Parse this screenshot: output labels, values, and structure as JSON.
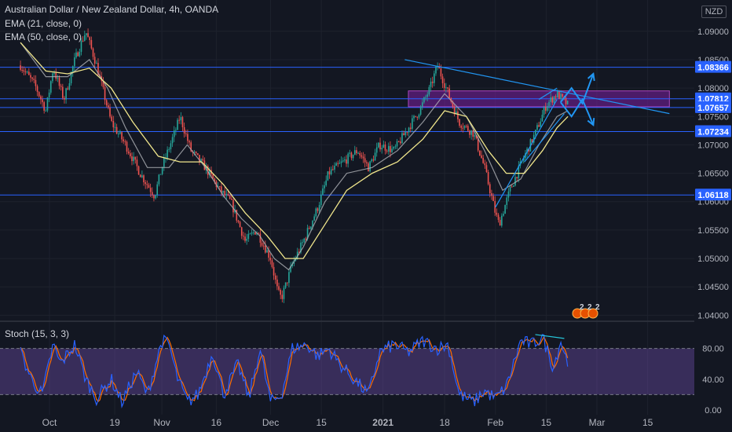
{
  "legend": {
    "title": "Australian Dollar / New Zealand Dollar, 4h, OANDA",
    "ema21": "EMA (21, close, 0)",
    "ema50": "EMA (50, close, 0)",
    "stoch": "Stoch (15, 3, 3)"
  },
  "currency": "NZD",
  "events": [
    "2",
    "2",
    "2"
  ],
  "colors": {
    "background": "#131722",
    "candle_up": "#26a69a",
    "candle_down": "#ef5350",
    "ema21": "#b0b3b8",
    "ema50": "#f0e68c",
    "hline": "#2962ff",
    "zone": "#7b1fa2",
    "trendline": "#2196f3",
    "stoch_k": "#2962ff",
    "stoch_d": "#ff6d00",
    "stoch_band": "#7e57c2",
    "price_label_bg": "#2962ff"
  },
  "chart_data": [
    {
      "type": "candlestick",
      "symbol": "AUDNZD",
      "interval": "4h",
      "x_ticks": [
        "Oct",
        "19",
        "Nov",
        "16",
        "Dec",
        "15",
        "2021",
        "18",
        "Feb",
        "15",
        "Mar",
        "15"
      ],
      "y_ticks": [
        "1.09000",
        "1.08500",
        "1.08000",
        "1.07500",
        "1.07000",
        "1.06500",
        "1.06000",
        "1.05500",
        "1.05000",
        "1.04500",
        "1.04000"
      ],
      "ylim": [
        1.0395,
        1.0955
      ],
      "close_path": [
        [
          "Sep 23",
          1.084
        ],
        [
          "Sep 27",
          1.0805
        ],
        [
          "Sep 30",
          1.076
        ],
        [
          "Oct 2",
          1.0835
        ],
        [
          "Oct 5",
          1.078
        ],
        [
          "Oct 8",
          1.085
        ],
        [
          "Oct 11",
          1.09
        ],
        [
          "Oct 14",
          1.084
        ],
        [
          "Oct 18",
          1.074
        ],
        [
          "Oct 22",
          1.07
        ],
        [
          "Oct 26",
          1.065
        ],
        [
          "Oct 30",
          1.061
        ],
        [
          "Nov 1",
          1.066
        ],
        [
          "Nov 5",
          1.073
        ],
        [
          "Nov 6",
          1.075
        ],
        [
          "Nov 9",
          1.069
        ],
        [
          "Nov 13",
          1.066
        ],
        [
          "Nov 17",
          1.062
        ],
        [
          "Nov 20",
          1.06
        ],
        [
          "Nov 24",
          1.053
        ],
        [
          "Nov 27",
          1.055
        ],
        [
          "Dec 1",
          1.05
        ],
        [
          "Dec 3",
          1.044
        ],
        [
          "Dec 4",
          1.043
        ],
        [
          "Dec 7",
          1.049
        ],
        [
          "Dec 10",
          1.053
        ],
        [
          "Dec 14",
          1.059
        ],
        [
          "Dec 17",
          1.065
        ],
        [
          "Dec 21",
          1.067
        ],
        [
          "Dec 25",
          1.069
        ],
        [
          "Dec 28",
          1.066
        ],
        [
          "Dec 31",
          1.07
        ],
        [
          "Jan 4",
          1.069
        ],
        [
          "Jan 7",
          1.072
        ],
        [
          "Jan 11",
          1.076
        ],
        [
          "Jan 14",
          1.08
        ],
        [
          "Jan 16",
          1.084
        ],
        [
          "Jan 19",
          1.079
        ],
        [
          "Jan 22",
          1.074
        ],
        [
          "Jan 26",
          1.072
        ],
        [
          "Jan 29",
          1.066
        ],
        [
          "Feb 1",
          1.058
        ],
        [
          "Feb 2",
          1.056
        ],
        [
          "Feb 5",
          1.062
        ],
        [
          "Feb 9",
          1.068
        ],
        [
          "Feb 12",
          1.072
        ],
        [
          "Feb 15",
          1.077
        ],
        [
          "Feb 18",
          1.079
        ],
        [
          "Feb 21",
          1.077
        ]
      ],
      "ema21_path": [
        [
          "Sep 23",
          1.088
        ],
        [
          "Sep 30",
          1.082
        ],
        [
          "Oct 6",
          1.082
        ],
        [
          "Oct 12",
          1.085
        ],
        [
          "Oct 17",
          1.08
        ],
        [
          "Oct 22",
          1.073
        ],
        [
          "Oct 28",
          1.066
        ],
        [
          "Nov 3",
          1.066
        ],
        [
          "Nov 8",
          1.07
        ],
        [
          "Nov 13",
          1.066
        ],
        [
          "Nov 18",
          1.061
        ],
        [
          "Nov 23",
          1.057
        ],
        [
          "Nov 28",
          1.054
        ],
        [
          "Dec 2",
          1.05
        ],
        [
          "Dec 6",
          1.048
        ],
        [
          "Dec 10",
          1.052
        ],
        [
          "Dec 16",
          1.06
        ],
        [
          "Dec 22",
          1.065
        ],
        [
          "Dec 29",
          1.066
        ],
        [
          "Jan 5",
          1.069
        ],
        [
          "Jan 12",
          1.074
        ],
        [
          "Jan 18",
          1.079
        ],
        [
          "Jan 24",
          1.075
        ],
        [
          "Jan 29",
          1.069
        ],
        [
          "Feb 3",
          1.062
        ],
        [
          "Feb 8",
          1.064
        ],
        [
          "Feb 13",
          1.07
        ],
        [
          "Feb 18",
          1.075
        ],
        [
          "Feb 21",
          1.076
        ]
      ],
      "ema50_path": [
        [
          "Sep 23",
          1.088
        ],
        [
          "Sep 30",
          1.083
        ],
        [
          "Oct 6",
          1.0825
        ],
        [
          "Oct 12",
          1.0835
        ],
        [
          "Oct 18",
          1.08
        ],
        [
          "Oct 24",
          1.074
        ],
        [
          "Oct 31",
          1.068
        ],
        [
          "Nov 6",
          1.067
        ],
        [
          "Nov 12",
          1.067
        ],
        [
          "Nov 18",
          1.063
        ],
        [
          "Nov 24",
          1.058
        ],
        [
          "Nov 30",
          1.054
        ],
        [
          "Dec 5",
          1.05
        ],
        [
          "Dec 10",
          1.05
        ],
        [
          "Dec 16",
          1.056
        ],
        [
          "Dec 22",
          1.062
        ],
        [
          "Dec 29",
          1.065
        ],
        [
          "Jan 5",
          1.067
        ],
        [
          "Jan 12",
          1.071
        ],
        [
          "Jan 18",
          1.076
        ],
        [
          "Jan 24",
          1.075
        ],
        [
          "Jan 30",
          1.069
        ],
        [
          "Feb 4",
          1.065
        ],
        [
          "Feb 9",
          1.065
        ],
        [
          "Feb 14",
          1.069
        ],
        [
          "Feb 18",
          1.073
        ],
        [
          "Feb 21",
          1.075
        ]
      ],
      "horizontal_levels": [
        1.08366,
        1.07812,
        1.07657,
        1.07234,
        1.06118
      ],
      "price_labels": [
        "1.08366",
        "1.07812",
        "1.07657",
        "1.07234",
        "1.06118"
      ],
      "current_price_label": "1.07812",
      "zone": {
        "x_start": "Jan 8",
        "x_end": "Mar 21",
        "y_low": 1.0767,
        "y_high": 1.0795
      },
      "trendlines": [
        {
          "start": [
            "Jan 7",
            1.085
          ],
          "end": [
            "Mar 21",
            1.0755
          ]
        },
        {
          "start": [
            "Feb 1",
            1.059
          ],
          "end": [
            "Feb 18",
            1.078
          ]
        },
        {
          "start": [
            "Feb 9",
            1.067
          ],
          "end": [
            "Feb 20",
            1.0755
          ]
        },
        {
          "start": [
            "Feb 13",
            1.078
          ],
          "end": [
            "Feb 18",
            1.08
          ]
        }
      ],
      "projections": [
        {
          "direction": "up",
          "path": [
            [
              "Feb 19",
              1.0775
            ],
            [
              "Feb 22",
              1.08
            ],
            [
              "Feb 25",
              1.0773
            ],
            [
              "Feb 28",
              1.0825
            ]
          ]
        },
        {
          "direction": "down",
          "path": [
            [
              "Feb 19",
              1.0775
            ],
            [
              "Feb 22",
              1.075
            ],
            [
              "Feb 25",
              1.078
            ],
            [
              "Feb 28",
              1.0735
            ]
          ]
        }
      ]
    },
    {
      "type": "line",
      "name": "Stoch (15, 3, 3)",
      "y_ticks": [
        "80.00",
        "40.00",
        "0.00"
      ],
      "ylim": [
        0,
        100
      ],
      "band": [
        20,
        80
      ],
      "k_path": [
        [
          "Sep 23",
          75
        ],
        [
          "Sep 26",
          40
        ],
        [
          "Sep 29",
          20
        ],
        [
          "Oct 2",
          85
        ],
        [
          "Oct 4",
          60
        ],
        [
          "Oct 8",
          85
        ],
        [
          "Oct 11",
          40
        ],
        [
          "Oct 14",
          15
        ],
        [
          "Oct 18",
          40
        ],
        [
          "Oct 21",
          10
        ],
        [
          "Oct 25",
          50
        ],
        [
          "Oct 28",
          20
        ],
        [
          "Nov 1",
          90
        ],
        [
          "Nov 3",
          85
        ],
        [
          "Nov 5",
          45
        ],
        [
          "Nov 8",
          10
        ],
        [
          "Nov 11",
          20
        ],
        [
          "Nov 15",
          75
        ],
        [
          "Nov 18",
          20
        ],
        [
          "Nov 22",
          60
        ],
        [
          "Nov 25",
          15
        ],
        [
          "Nov 28",
          80
        ],
        [
          "Dec 1",
          10
        ],
        [
          "Dec 4",
          20
        ],
        [
          "Dec 7",
          80
        ],
        [
          "Dec 11",
          85
        ],
        [
          "Dec 14",
          70
        ],
        [
          "Dec 17",
          80
        ],
        [
          "Dec 20",
          60
        ],
        [
          "Dec 24",
          40
        ],
        [
          "Dec 28",
          20
        ],
        [
          "Dec 31",
          75
        ],
        [
          "Jan 4",
          85
        ],
        [
          "Jan 8",
          75
        ],
        [
          "Jan 12",
          90
        ],
        [
          "Jan 16",
          80
        ],
        [
          "Jan 19",
          85
        ],
        [
          "Jan 22",
          20
        ],
        [
          "Jan 26",
          10
        ],
        [
          "Jan 29",
          25
        ],
        [
          "Feb 1",
          15
        ],
        [
          "Feb 4",
          30
        ],
        [
          "Feb 8",
          90
        ],
        [
          "Feb 11",
          85
        ],
        [
          "Feb 14",
          95
        ],
        [
          "Feb 17",
          55
        ],
        [
          "Feb 19",
          90
        ],
        [
          "Feb 21",
          60
        ]
      ],
      "divergence_line": {
        "start": [
          "Feb 12",
          98
        ],
        "end": [
          "Feb 20",
          93
        ]
      }
    }
  ]
}
